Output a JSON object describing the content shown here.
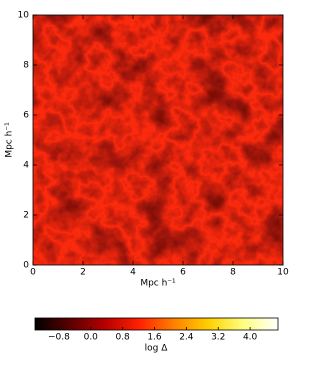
{
  "chart_data": {
    "type": "image",
    "x_label": "Mpc h⁻¹",
    "y_label": "Mpc h⁻¹",
    "xlim": [
      0,
      10
    ],
    "ylim": [
      0,
      10
    ],
    "xticks": [
      0,
      2,
      4,
      6,
      8,
      10
    ],
    "yticks": [
      0,
      2,
      4,
      6,
      8,
      10
    ],
    "colorbar": {
      "label": "log Δ",
      "lim": [
        -1.4,
        4.7
      ],
      "ticks": [
        {
          "value": -0.8,
          "label": "−0.8"
        },
        {
          "value": 0,
          "label": "0.0"
        },
        0.8,
        1.6,
        2.4,
        3.2,
        {
          "value": 4,
          "label": "4.0"
        }
      ],
      "colors": [
        "#000000",
        "#5a0000",
        "#b40000",
        "#ff2000",
        "#ff8000",
        "#ffd000",
        "#ffff80",
        "#ffffff"
      ]
    }
  }
}
